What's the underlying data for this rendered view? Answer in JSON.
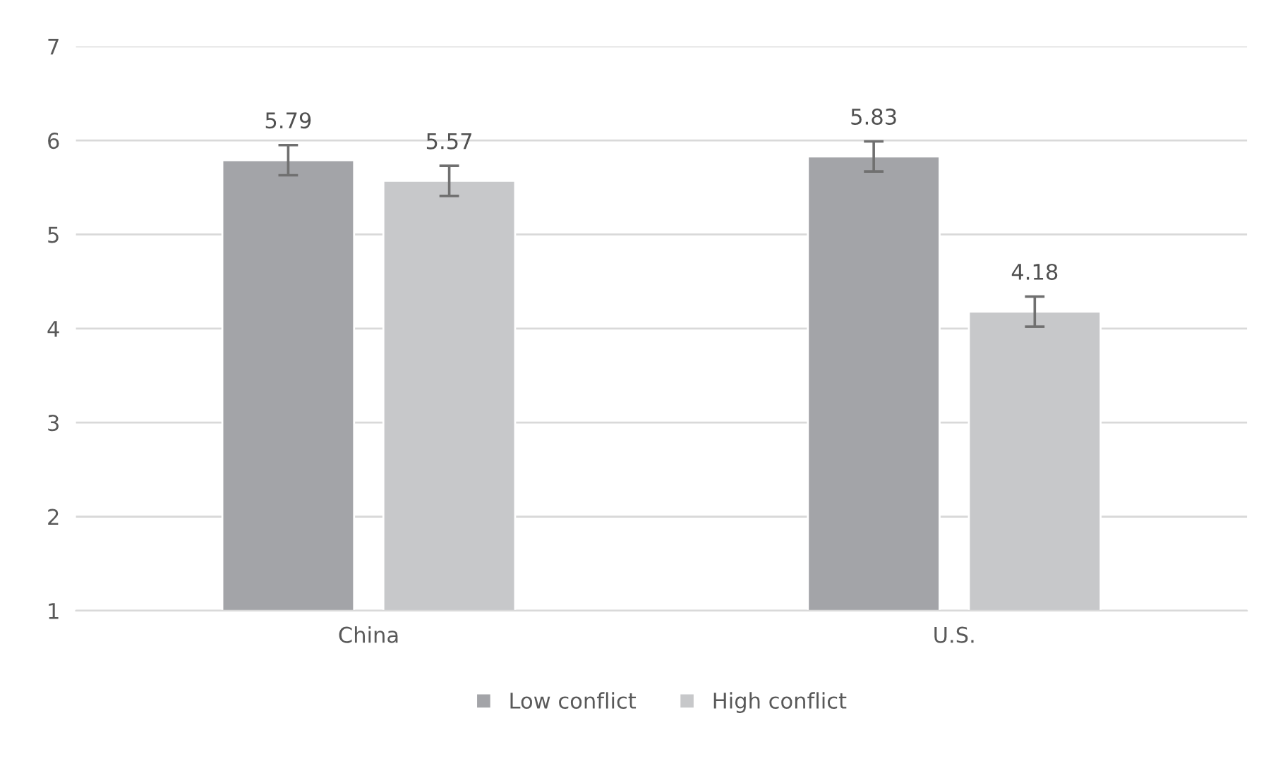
{
  "chart_data": {
    "type": "bar",
    "categories": [
      "China",
      "U.S."
    ],
    "series": [
      {
        "name": "Low conflict",
        "color": "#a3a4a8",
        "values": [
          5.79,
          5.83
        ],
        "errors": [
          0.16,
          0.16
        ]
      },
      {
        "name": "High conflict",
        "color": "#c7c8ca",
        "values": [
          5.57,
          4.18
        ],
        "errors": [
          0.16,
          0.16
        ]
      }
    ],
    "ylim": [
      1,
      7
    ],
    "yticks": [
      1,
      2,
      3,
      4,
      5,
      6,
      7
    ],
    "grid": "y",
    "legend": "bottom",
    "data_labels": true
  }
}
